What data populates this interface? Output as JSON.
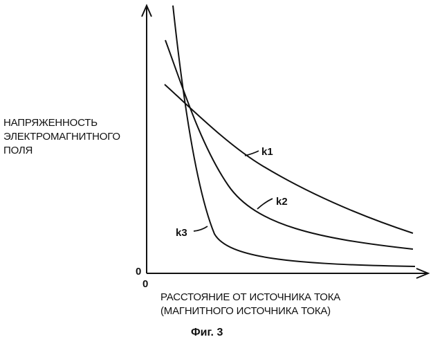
{
  "ylabel_lines": [
    "НАПРЯЖЕННОСТЬ",
    "ЭЛЕКТРОМАГНИТНОГО",
    "ПОЛЯ"
  ],
  "xlabel_lines": [
    "РАССТОЯНИЕ ОТ ИСТОЧНИКА ТОКА",
    "(МАГНИТНОГО ИСТОЧНИКА ТОКА)"
  ],
  "y_origin": "0",
  "x_origin": "0",
  "caption": "Фиг. 3",
  "curves": [
    {
      "label": "k1"
    },
    {
      "label": "k2"
    },
    {
      "label": "k3"
    }
  ]
}
